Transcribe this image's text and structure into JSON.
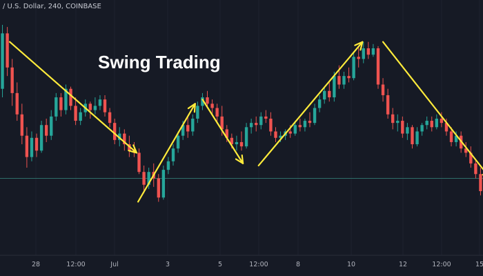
{
  "header": {
    "symbol_text": "/ U.S. Dollar, 240, COINBASE"
  },
  "chart_data": {
    "type": "candlestick",
    "title": "Swing Trading",
    "price_range": [
      0,
      100
    ],
    "bar_interval": "240",
    "colors": {
      "up": "#26a69a",
      "down": "#ef5350",
      "background": "#161a25",
      "annotation": "#ffeb3b",
      "level_line": "#2f6f6a",
      "grid": "#1e2230"
    },
    "x_ticks": [
      "28",
      "12:00",
      "Jul",
      "3",
      "5",
      "12:00",
      "8",
      "10",
      "12",
      "12:00",
      "15"
    ],
    "horizontal_level": 28,
    "candles": [
      {
        "o": 70,
        "h": 100,
        "l": 66,
        "c": 96
      },
      {
        "o": 96,
        "h": 99,
        "l": 76,
        "c": 80
      },
      {
        "o": 80,
        "h": 84,
        "l": 62,
        "c": 68
      },
      {
        "o": 68,
        "h": 73,
        "l": 55,
        "c": 58
      },
      {
        "o": 58,
        "h": 63,
        "l": 44,
        "c": 48
      },
      {
        "o": 48,
        "h": 52,
        "l": 33,
        "c": 38
      },
      {
        "o": 38,
        "h": 50,
        "l": 36,
        "c": 47
      },
      {
        "o": 47,
        "h": 49,
        "l": 38,
        "c": 41
      },
      {
        "o": 41,
        "h": 55,
        "l": 40,
        "c": 53
      },
      {
        "o": 53,
        "h": 56,
        "l": 45,
        "c": 48
      },
      {
        "o": 48,
        "h": 60,
        "l": 46,
        "c": 57
      },
      {
        "o": 57,
        "h": 68,
        "l": 55,
        "c": 66
      },
      {
        "o": 66,
        "h": 68,
        "l": 57,
        "c": 60
      },
      {
        "o": 60,
        "h": 72,
        "l": 58,
        "c": 70
      },
      {
        "o": 70,
        "h": 71,
        "l": 60,
        "c": 62
      },
      {
        "o": 62,
        "h": 66,
        "l": 53,
        "c": 55
      },
      {
        "o": 55,
        "h": 61,
        "l": 53,
        "c": 59
      },
      {
        "o": 59,
        "h": 65,
        "l": 57,
        "c": 63
      },
      {
        "o": 63,
        "h": 64,
        "l": 56,
        "c": 60
      },
      {
        "o": 60,
        "h": 66,
        "l": 58,
        "c": 62
      },
      {
        "o": 62,
        "h": 67,
        "l": 60,
        "c": 65
      },
      {
        "o": 65,
        "h": 67,
        "l": 57,
        "c": 59
      },
      {
        "o": 59,
        "h": 61,
        "l": 52,
        "c": 54
      },
      {
        "o": 54,
        "h": 56,
        "l": 44,
        "c": 46
      },
      {
        "o": 46,
        "h": 52,
        "l": 43,
        "c": 49
      },
      {
        "o": 49,
        "h": 51,
        "l": 41,
        "c": 44
      },
      {
        "o": 44,
        "h": 48,
        "l": 38,
        "c": 41
      },
      {
        "o": 41,
        "h": 45,
        "l": 38,
        "c": 40
      },
      {
        "o": 40,
        "h": 42,
        "l": 30,
        "c": 31
      },
      {
        "o": 31,
        "h": 34,
        "l": 21,
        "c": 25
      },
      {
        "o": 25,
        "h": 33,
        "l": 23,
        "c": 31
      },
      {
        "o": 31,
        "h": 35,
        "l": 24,
        "c": 28
      },
      {
        "o": 28,
        "h": 30,
        "l": 17,
        "c": 19
      },
      {
        "o": 19,
        "h": 34,
        "l": 18,
        "c": 32
      },
      {
        "o": 32,
        "h": 38,
        "l": 30,
        "c": 36
      },
      {
        "o": 36,
        "h": 44,
        "l": 34,
        "c": 42
      },
      {
        "o": 42,
        "h": 50,
        "l": 40,
        "c": 48
      },
      {
        "o": 48,
        "h": 55,
        "l": 46,
        "c": 53
      },
      {
        "o": 53,
        "h": 57,
        "l": 47,
        "c": 50
      },
      {
        "o": 50,
        "h": 58,
        "l": 48,
        "c": 56
      },
      {
        "o": 56,
        "h": 64,
        "l": 54,
        "c": 62
      },
      {
        "o": 62,
        "h": 68,
        "l": 60,
        "c": 66
      },
      {
        "o": 66,
        "h": 69,
        "l": 61,
        "c": 63
      },
      {
        "o": 63,
        "h": 65,
        "l": 58,
        "c": 61
      },
      {
        "o": 61,
        "h": 63,
        "l": 54,
        "c": 57
      },
      {
        "o": 57,
        "h": 62,
        "l": 48,
        "c": 51
      },
      {
        "o": 51,
        "h": 53,
        "l": 45,
        "c": 47
      },
      {
        "o": 47,
        "h": 49,
        "l": 42,
        "c": 44
      },
      {
        "o": 44,
        "h": 48,
        "l": 41,
        "c": 45
      },
      {
        "o": 45,
        "h": 50,
        "l": 41,
        "c": 43
      },
      {
        "o": 43,
        "h": 54,
        "l": 42,
        "c": 52
      },
      {
        "o": 52,
        "h": 56,
        "l": 49,
        "c": 54
      },
      {
        "o": 54,
        "h": 57,
        "l": 50,
        "c": 53
      },
      {
        "o": 53,
        "h": 59,
        "l": 51,
        "c": 57
      },
      {
        "o": 57,
        "h": 60,
        "l": 54,
        "c": 56
      },
      {
        "o": 56,
        "h": 59,
        "l": 48,
        "c": 50
      },
      {
        "o": 50,
        "h": 52,
        "l": 45,
        "c": 47
      },
      {
        "o": 47,
        "h": 50,
        "l": 45,
        "c": 48
      },
      {
        "o": 48,
        "h": 51,
        "l": 46,
        "c": 50
      },
      {
        "o": 50,
        "h": 53,
        "l": 47,
        "c": 49
      },
      {
        "o": 49,
        "h": 55,
        "l": 48,
        "c": 53
      },
      {
        "o": 53,
        "h": 56,
        "l": 50,
        "c": 52
      },
      {
        "o": 52,
        "h": 56,
        "l": 50,
        "c": 55
      },
      {
        "o": 55,
        "h": 59,
        "l": 52,
        "c": 54
      },
      {
        "o": 54,
        "h": 63,
        "l": 53,
        "c": 61
      },
      {
        "o": 61,
        "h": 67,
        "l": 59,
        "c": 65
      },
      {
        "o": 65,
        "h": 71,
        "l": 63,
        "c": 69
      },
      {
        "o": 69,
        "h": 73,
        "l": 64,
        "c": 66
      },
      {
        "o": 66,
        "h": 78,
        "l": 64,
        "c": 76
      },
      {
        "o": 76,
        "h": 81,
        "l": 70,
        "c": 72
      },
      {
        "o": 72,
        "h": 78,
        "l": 70,
        "c": 76
      },
      {
        "o": 76,
        "h": 80,
        "l": 73,
        "c": 75
      },
      {
        "o": 75,
        "h": 87,
        "l": 74,
        "c": 85
      },
      {
        "o": 85,
        "h": 90,
        "l": 80,
        "c": 84
      },
      {
        "o": 84,
        "h": 92,
        "l": 82,
        "c": 89
      },
      {
        "o": 89,
        "h": 92,
        "l": 84,
        "c": 86
      },
      {
        "o": 86,
        "h": 91,
        "l": 85,
        "c": 89
      },
      {
        "o": 89,
        "h": 90,
        "l": 70,
        "c": 72
      },
      {
        "o": 72,
        "h": 75,
        "l": 64,
        "c": 67
      },
      {
        "o": 67,
        "h": 70,
        "l": 56,
        "c": 58
      },
      {
        "o": 58,
        "h": 61,
        "l": 51,
        "c": 54
      },
      {
        "o": 54,
        "h": 58,
        "l": 50,
        "c": 55
      },
      {
        "o": 55,
        "h": 57,
        "l": 47,
        "c": 49
      },
      {
        "o": 49,
        "h": 54,
        "l": 46,
        "c": 52
      },
      {
        "o": 52,
        "h": 53,
        "l": 42,
        "c": 44
      },
      {
        "o": 44,
        "h": 52,
        "l": 43,
        "c": 50
      },
      {
        "o": 50,
        "h": 54,
        "l": 48,
        "c": 53
      },
      {
        "o": 53,
        "h": 57,
        "l": 51,
        "c": 55
      },
      {
        "o": 55,
        "h": 57,
        "l": 50,
        "c": 52
      },
      {
        "o": 52,
        "h": 58,
        "l": 51,
        "c": 56
      },
      {
        "o": 56,
        "h": 59,
        "l": 52,
        "c": 54
      },
      {
        "o": 54,
        "h": 56,
        "l": 48,
        "c": 50
      },
      {
        "o": 50,
        "h": 52,
        "l": 43,
        "c": 45
      },
      {
        "o": 45,
        "h": 50,
        "l": 43,
        "c": 48
      },
      {
        "o": 48,
        "h": 50,
        "l": 40,
        "c": 42
      },
      {
        "o": 42,
        "h": 45,
        "l": 38,
        "c": 40
      },
      {
        "o": 40,
        "h": 43,
        "l": 33,
        "c": 35
      },
      {
        "o": 35,
        "h": 37,
        "l": 28,
        "c": 30
      },
      {
        "o": 30,
        "h": 33,
        "l": 20,
        "c": 22
      }
    ],
    "annotations": [
      {
        "from": [
          1.5,
          92
        ],
        "to": [
          27.5,
          40
        ]
      },
      {
        "from": [
          27.8,
          17
        ],
        "to": [
          39.5,
          63
        ]
      },
      {
        "from": [
          41,
          65
        ],
        "to": [
          49.3,
          35
        ]
      },
      {
        "from": [
          52.5,
          34
        ],
        "to": [
          73.8,
          92
        ]
      },
      {
        "from": [
          78,
          92
        ],
        "to": [
          100,
          28
        ]
      }
    ]
  }
}
